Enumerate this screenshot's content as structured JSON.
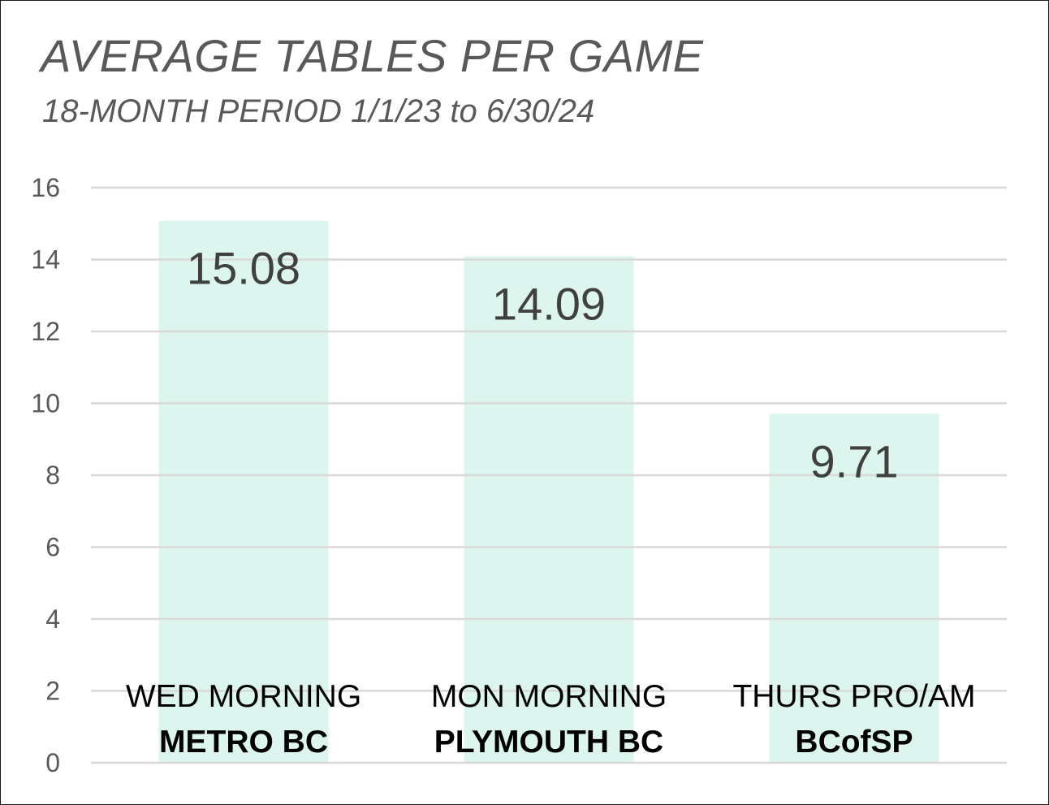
{
  "chart_data": {
    "type": "bar",
    "title": "AVERAGE TABLES PER GAME",
    "subtitle": "18-MONTH PERIOD 1/1/23 to 6/30/24",
    "categories": [
      {
        "line1": "WED MORNING",
        "line2": "METRO BC"
      },
      {
        "line1": "MON MORNING",
        "line2": "PLYMOUTH BC"
      },
      {
        "line1": "THURS PRO/AM",
        "line2": "BCofSP"
      }
    ],
    "values": [
      15.08,
      14.09,
      9.71
    ],
    "data_labels": [
      "15.08",
      "14.09",
      "9.71"
    ],
    "ylim": [
      0,
      16
    ],
    "yticks": [
      "0",
      "2",
      "4",
      "6",
      "8",
      "10",
      "12",
      "14",
      "16"
    ],
    "grid": true,
    "colors": {
      "bar": "#dcf5ee",
      "gridline": "#d9d9d9",
      "text": "#595959"
    }
  }
}
